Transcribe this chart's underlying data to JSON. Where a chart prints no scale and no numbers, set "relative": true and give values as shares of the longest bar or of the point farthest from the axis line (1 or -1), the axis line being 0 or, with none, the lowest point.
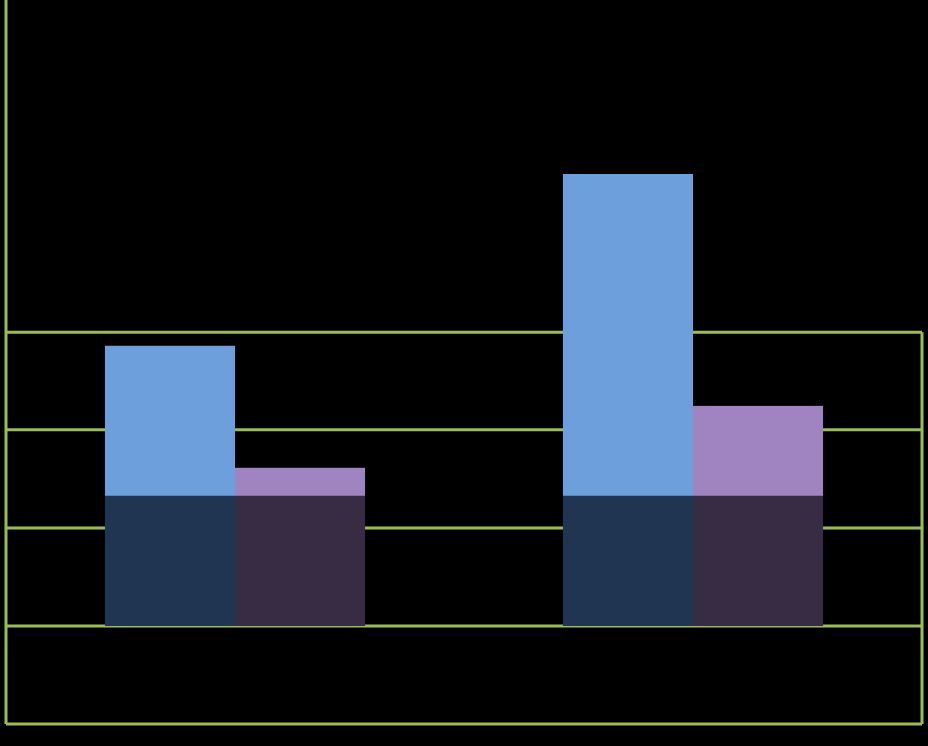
{
  "chart_data": {
    "type": "bar",
    "relative": true,
    "stacked": true,
    "ref_lines": [
      {
        "axis": "y",
        "value": 0.217,
        "color": "#9bbb59"
      },
      {
        "axis": "y",
        "value": 0.434,
        "color": "#9bbb59"
      },
      {
        "axis": "y",
        "value": 0.65,
        "color": "#9bbb59"
      }
    ],
    "categories": [
      null,
      null,
      null,
      null
    ],
    "series": [
      {
        "colors": [
          "#1f3552",
          "#382c45",
          "#1f3552",
          "#382c45"
        ],
        "values": [
          0.288,
          0.288,
          0.288,
          0.288
        ]
      },
      {
        "colors": [
          "#6c9fdc",
          "#a084c2",
          "#6c9fdc",
          "#a084c2"
        ],
        "values": [
          0.332,
          0.062,
          0.712,
          0.199
        ]
      }
    ]
  }
}
